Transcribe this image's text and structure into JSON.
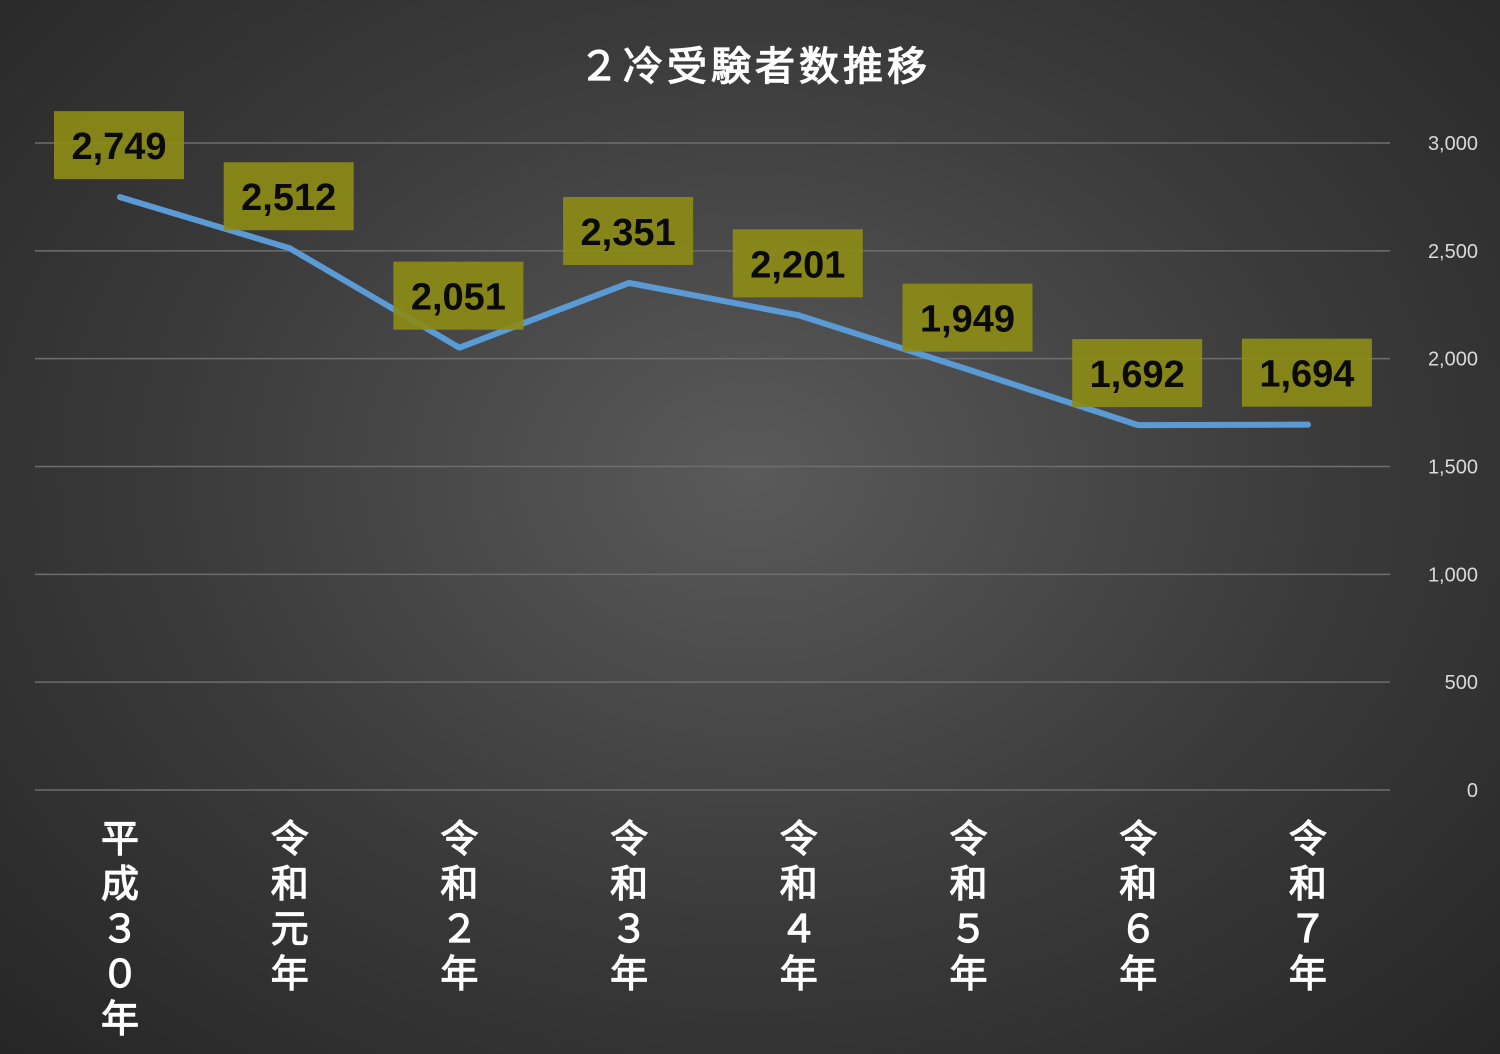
{
  "chart_data": {
    "type": "line",
    "title": "２冷受験者数推移",
    "categories": [
      "平成３０年",
      "令和元年",
      "令和２年",
      "令和３年",
      "令和４年",
      "令和５年",
      "令和６年",
      "令和７年"
    ],
    "series": [
      {
        "values": [
          2749,
          2512,
          2051,
          2351,
          2201,
          1949,
          1692,
          1694
        ]
      }
    ],
    "data_labels": [
      "2,749",
      "2,512",
      "2,051",
      "2,351",
      "2,201",
      "1,949",
      "1,692",
      "1,694"
    ],
    "yticks": [
      "0",
      "500",
      "1,000",
      "1,500",
      "2,000",
      "2,500",
      "3,000"
    ],
    "ylim": [
      0,
      3000
    ],
    "y_axis_position": "right",
    "grid": true,
    "colors": {
      "line": "#5b9bd5",
      "label_box": "#8b8b17",
      "background": "#3a3a3a"
    }
  }
}
